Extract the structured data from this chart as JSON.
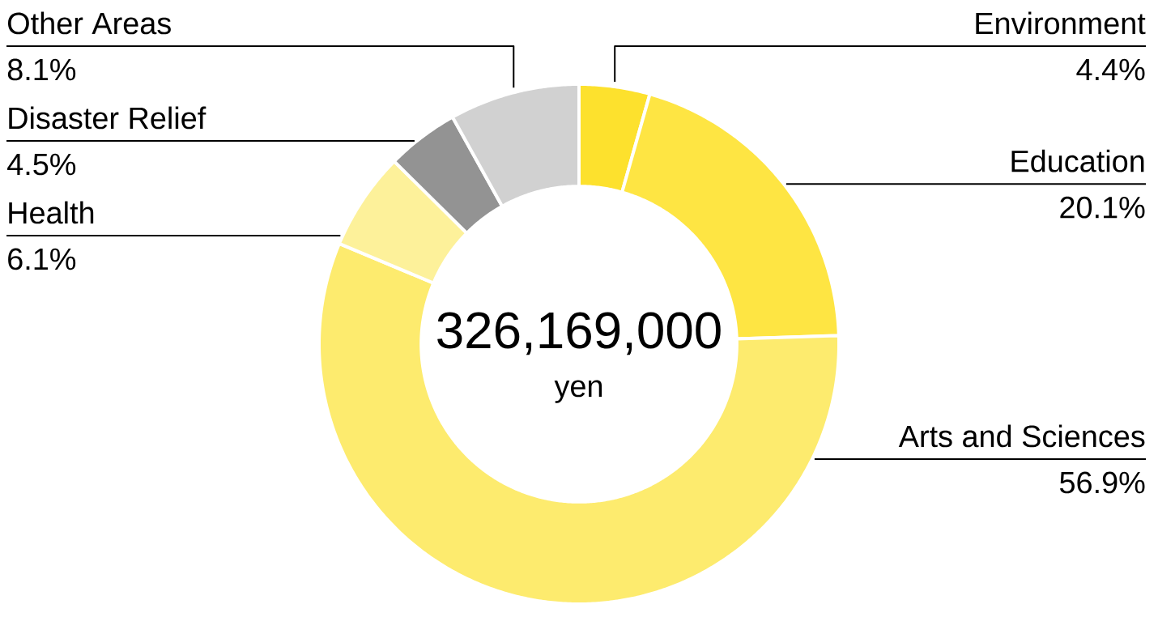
{
  "chart_data": {
    "type": "donut",
    "categories": [
      "Environment",
      "Education",
      "Arts and Sciences",
      "Health",
      "Disaster Relief",
      "Other Areas"
    ],
    "values": [
      4.4,
      20.1,
      56.9,
      6.1,
      4.5,
      8.1
    ],
    "colors": [
      "#fde12d",
      "#fee543",
      "#fdeb6e",
      "#fdf19a",
      "#939393",
      "#d1d1d1"
    ],
    "value_labels": [
      "4.4%",
      "20.1%",
      "56.9%",
      "6.1%",
      "4.5%",
      "8.1%"
    ],
    "annotations": [
      "326,169,000",
      "yen"
    ]
  }
}
